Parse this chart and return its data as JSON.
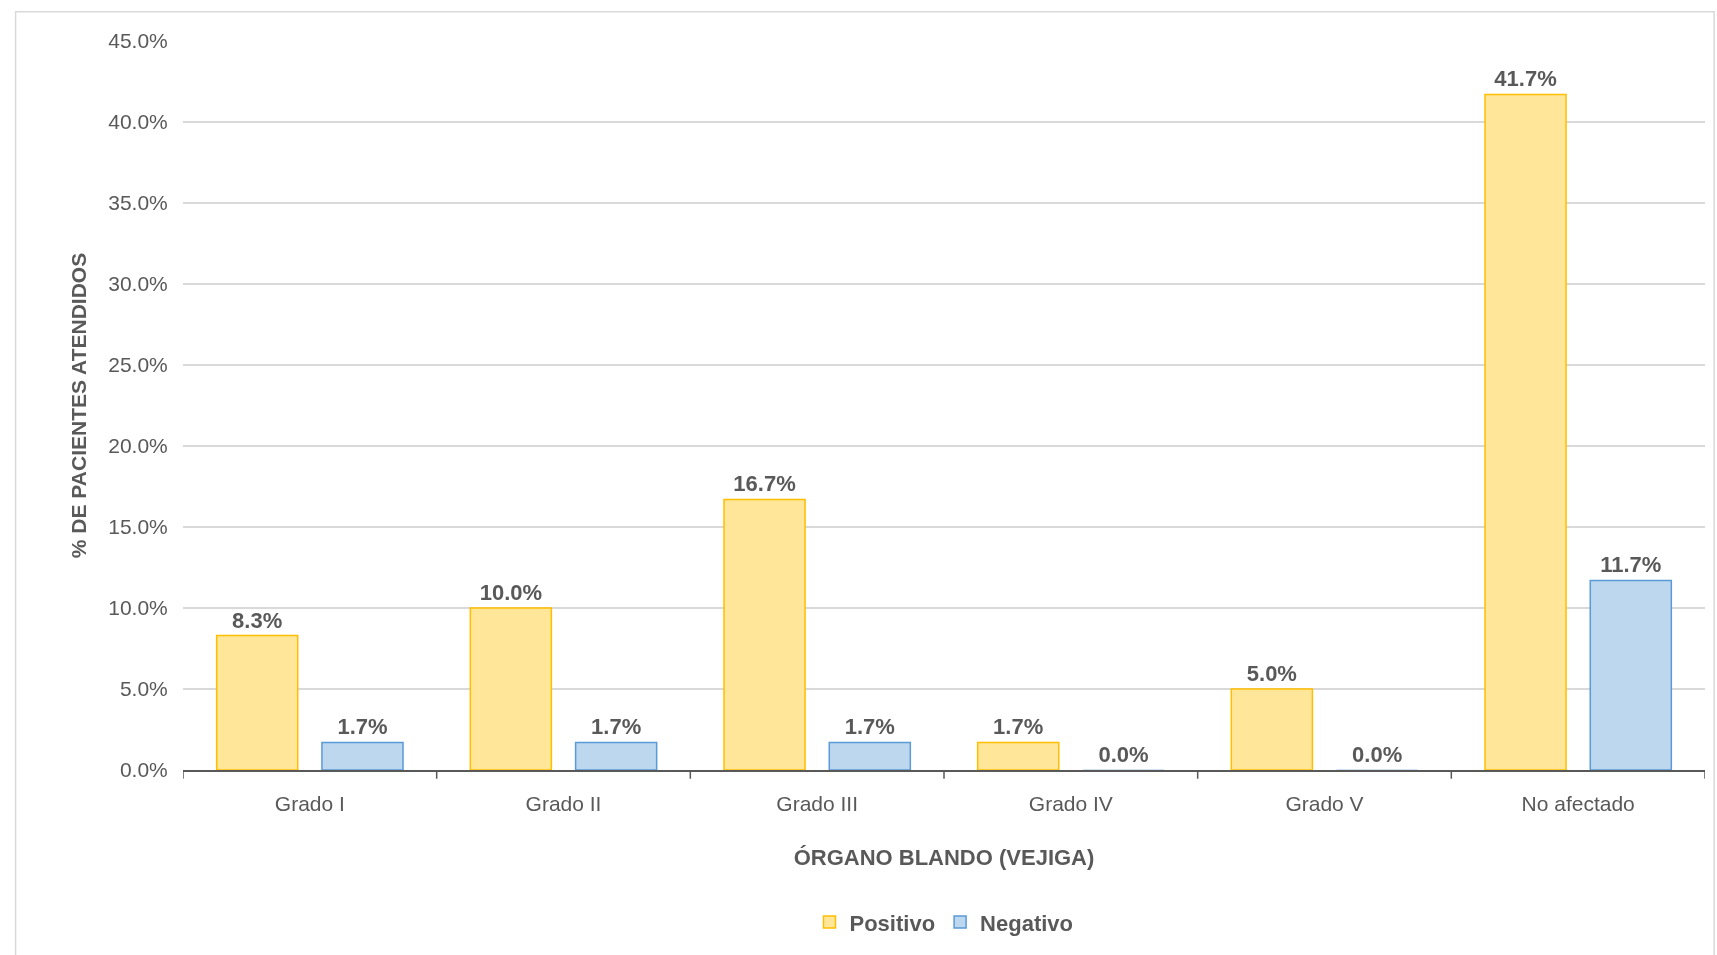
{
  "chart_data": {
    "type": "bar",
    "xlabel": "ÓRGANO BLANDO (VEJIGA)",
    "ylabel": "% DE PACIENTES ATENDIDOS",
    "categories": [
      "Grado I",
      "Grado II",
      "Grado III",
      "Grado IV",
      "Grado V",
      "No afectado"
    ],
    "series": [
      {
        "name": "Positivo",
        "color": "#ffe699",
        "values": [
          8.3,
          10.0,
          16.7,
          1.7,
          5.0,
          41.7
        ],
        "value_labels": [
          "8.3%",
          "10.0%",
          "16.7%",
          "1.7%",
          "5.0%",
          "41.7%"
        ]
      },
      {
        "name": "Negativo",
        "color": "#bdd7ee",
        "values": [
          1.7,
          1.7,
          1.7,
          0.0,
          0.0,
          11.7
        ],
        "value_labels": [
          "1.7%",
          "1.7%",
          "1.7%",
          "0.0%",
          "0.0%",
          "11.7%"
        ]
      }
    ],
    "ylim": [
      0,
      45
    ],
    "yticks": [
      {
        "value": 0,
        "label": "0.0%"
      },
      {
        "value": 5,
        "label": "5.0%"
      },
      {
        "value": 10,
        "label": "10.0%"
      },
      {
        "value": 15,
        "label": "15.0%"
      },
      {
        "value": 20,
        "label": "20.0%"
      },
      {
        "value": 25,
        "label": "25.0%"
      },
      {
        "value": 30,
        "label": "30.0%"
      },
      {
        "value": 35,
        "label": "35.0%"
      },
      {
        "value": 40,
        "label": "40.0%"
      },
      {
        "value": 45,
        "label": "45.0%"
      }
    ],
    "grid": "y",
    "legend": "bottom"
  }
}
